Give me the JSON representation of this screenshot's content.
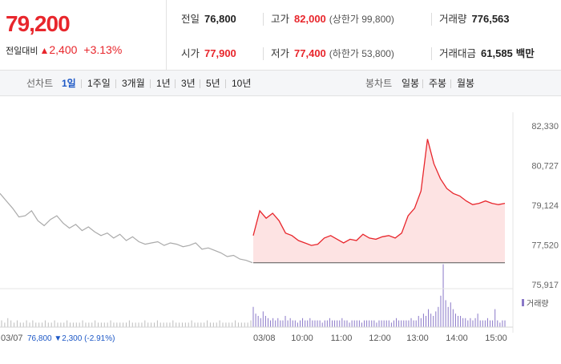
{
  "summary": {
    "price": "79,200",
    "change_label": "전일대비",
    "change_value": "2,400",
    "change_rate": "+3.13%",
    "prev_close": {
      "label": "전일",
      "value": "76,800"
    },
    "high": {
      "label": "고가",
      "value": "82,000",
      "sub": "(상한가 99,800)"
    },
    "volume": {
      "label": "거래량",
      "value": "776,563"
    },
    "open": {
      "label": "시가",
      "value": "77,900"
    },
    "low": {
      "label": "저가",
      "value": "77,400",
      "sub": "(하한가 53,800)"
    },
    "amount": {
      "label": "거래대금",
      "value": "61,585",
      "unit": "백만"
    }
  },
  "tabs": {
    "line_label": "선차트",
    "line_items": [
      "1일",
      "1주일",
      "3개월",
      "1년",
      "3년",
      "5년",
      "10년"
    ],
    "active": "1일",
    "candle_label": "봉차트",
    "candle_items": [
      "일봉",
      "주봉",
      "월봉"
    ]
  },
  "chart_data": {
    "type": "line",
    "y_ticks": [
      "82,330",
      "80,727",
      "79,124",
      "77,520",
      "75,917"
    ],
    "y_tick_values": [
      82330,
      80727,
      79124,
      77520,
      75917
    ],
    "ylim": [
      75917,
      82330
    ],
    "grid": false,
    "baseline": 76800,
    "prev_day": {
      "label": "03/07",
      "close": "76,800",
      "change": "2,300",
      "rate": "(-2.91%)",
      "color": "#aaaaaa",
      "values": [
        79600,
        79300,
        79000,
        78650,
        78700,
        78900,
        78500,
        78300,
        78550,
        78700,
        78400,
        78200,
        78350,
        78100,
        78250,
        78050,
        77900,
        78000,
        77800,
        77950,
        77700,
        77850,
        77650,
        77550,
        77600,
        77650,
        77500,
        77600,
        77550,
        77450,
        77500,
        77600,
        77350,
        77400,
        77300,
        77200,
        77050,
        77100,
        76950,
        76900,
        76800
      ]
    },
    "today": {
      "label": "03/08",
      "color": "#e8262c",
      "fill": "#fde3e3",
      "times": [
        "09:00",
        "09:10",
        "09:20",
        "09:30",
        "09:40",
        "09:50",
        "10:00",
        "10:10",
        "10:20",
        "10:30",
        "10:40",
        "10:50",
        "11:00",
        "11:10",
        "11:20",
        "11:30",
        "11:40",
        "11:50",
        "12:00",
        "12:10",
        "12:20",
        "12:30",
        "12:40",
        "12:50",
        "13:00",
        "13:10",
        "13:20",
        "13:30",
        "13:40",
        "13:50",
        "14:00",
        "14:10",
        "14:20",
        "14:30",
        "14:40",
        "14:50",
        "15:00",
        "15:10",
        "15:20",
        "15:30"
      ],
      "values": [
        77900,
        78900,
        78600,
        78800,
        78500,
        78000,
        77900,
        77700,
        77600,
        77500,
        77550,
        77800,
        77900,
        77750,
        77600,
        77750,
        77700,
        77950,
        77800,
        77750,
        77850,
        77900,
        77800,
        78000,
        78700,
        79000,
        79700,
        81800,
        80800,
        80200,
        79800,
        79600,
        79500,
        79300,
        79150,
        79200,
        79300,
        79200,
        79150,
        79200
      ]
    },
    "x_labels": [
      "10:00",
      "11:00",
      "12:00",
      "13:00",
      "14:00",
      "15:00"
    ],
    "volume_label": "거래량",
    "volume_color": "#8a78c8",
    "volume_prev": [
      3,
      2,
      4,
      3,
      2,
      3,
      2,
      2,
      3,
      2,
      3,
      2,
      2,
      2,
      3,
      2,
      2,
      3,
      2,
      2,
      2,
      3,
      2,
      2,
      2,
      2,
      3,
      2,
      2,
      2,
      3,
      2,
      2,
      2,
      2,
      3,
      2,
      2,
      2,
      2,
      2,
      3,
      2,
      2,
      2,
      2,
      3,
      2,
      2,
      2,
      3,
      2,
      2,
      2,
      2,
      3,
      2,
      2,
      2,
      2,
      2,
      3,
      2,
      2,
      2,
      2,
      3,
      2,
      2,
      2,
      3,
      2,
      2,
      2,
      2,
      3,
      2,
      2,
      2,
      2,
      3
    ],
    "volume_today": [
      9,
      6,
      5,
      4,
      7,
      5,
      4,
      3,
      4,
      3,
      4,
      3,
      3,
      5,
      3,
      4,
      3,
      3,
      2,
      3,
      4,
      3,
      3,
      4,
      3,
      3,
      3,
      3,
      2,
      3,
      3,
      4,
      3,
      3,
      3,
      3,
      4,
      3,
      3,
      2,
      3,
      3,
      3,
      3,
      2,
      3,
      3,
      3,
      3,
      3,
      2,
      3,
      3,
      3,
      3,
      3,
      2,
      3,
      4,
      3,
      3,
      3,
      3,
      3,
      4,
      3,
      3,
      5,
      4,
      6,
      5,
      8,
      6,
      5,
      7,
      9,
      14,
      28,
      12,
      9,
      11,
      8,
      6,
      5,
      5,
      4,
      4,
      3,
      4,
      3,
      4,
      6,
      3,
      3,
      3,
      4,
      3,
      3,
      8,
      3,
      2,
      3,
      3
    ]
  }
}
